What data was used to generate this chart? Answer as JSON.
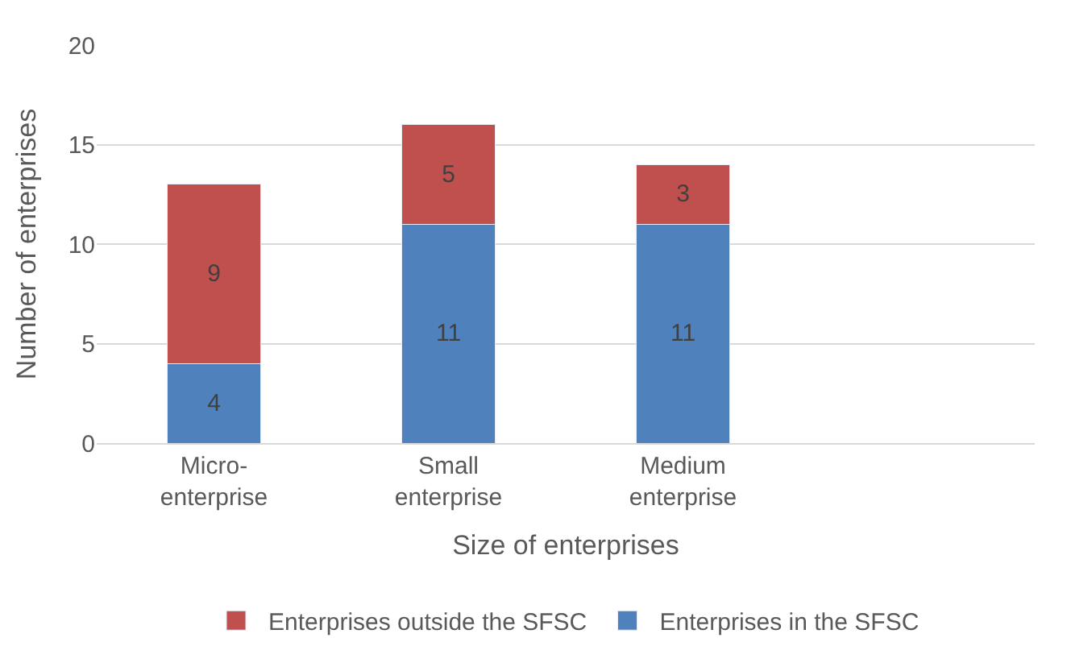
{
  "chart_data": {
    "type": "bar",
    "stacked": true,
    "xlabel": "Size of enterprises",
    "ylabel": "Number of enterprises",
    "categories": [
      "Micro-\nenterprise",
      "Small\nenterprise",
      "Medium\nenterprise",
      null
    ],
    "series": [
      {
        "name": "Enterprises in the SFSC",
        "color": "#4f81bd",
        "values": [
          4,
          11,
          11,
          null
        ]
      },
      {
        "name": "Enterprises outside the SFSC",
        "color": "#c0504d",
        "values": [
          9,
          5,
          3,
          null
        ]
      }
    ],
    "ylim": [
      0,
      20
    ],
    "yticks": [
      0,
      5,
      10,
      15,
      20
    ],
    "grid": "y",
    "legend": "bottom",
    "data_labels": true
  }
}
